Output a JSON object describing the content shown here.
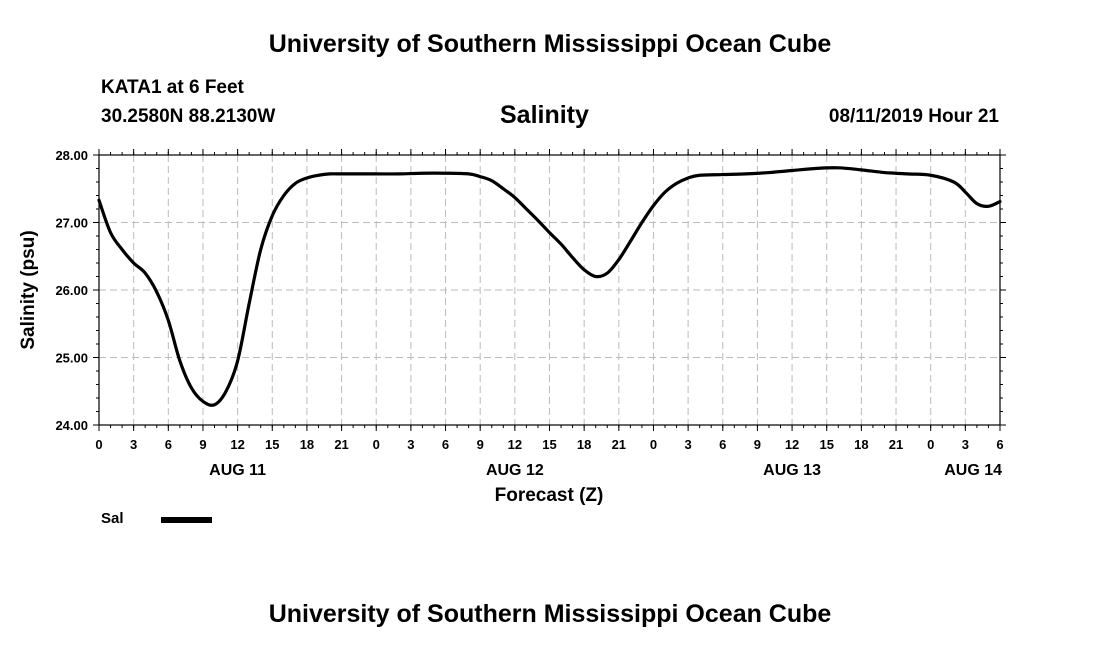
{
  "header": {
    "title": "University of Southern Mississippi Ocean Cube",
    "station": "KATA1 at 6 Feet",
    "coords": "30.2580N 88.2130W",
    "variable": "Salinity",
    "datetime": "08/11/2019 Hour 21"
  },
  "footer": {
    "title": "University of Southern Mississippi Ocean Cube"
  },
  "legend": {
    "label": "Sal"
  },
  "chart_data": {
    "type": "line",
    "title": "Salinity",
    "xlabel": "Forecast (Z)",
    "ylabel": "Salinity (psu)",
    "xlim": [
      0,
      78
    ],
    "ylim": [
      24.0,
      28.0
    ],
    "yticks": [
      24.0,
      25.0,
      26.0,
      27.0,
      28.0
    ],
    "ytick_labels": [
      "24.00",
      "25.00",
      "26.00",
      "27.00",
      "28.00"
    ],
    "xtick_labels": [
      "0",
      "3",
      "6",
      "9",
      "12",
      "15",
      "18",
      "21",
      "0",
      "3",
      "6",
      "9",
      "12",
      "15",
      "18",
      "21",
      "0",
      "3",
      "6",
      "9",
      "12",
      "15",
      "18",
      "21",
      "0",
      "3",
      "6"
    ],
    "date_labels": [
      {
        "text": "AUG 11",
        "hour": 12
      },
      {
        "text": "AUG 12",
        "hour": 36
      },
      {
        "text": "AUG 13",
        "hour": 60
      },
      {
        "text": "AUG 14",
        "hour": 78
      }
    ],
    "grid": true,
    "series": [
      {
        "name": "Sal",
        "color": "#000000",
        "x": [
          0,
          1,
          2,
          3,
          4,
          5,
          6,
          7,
          8,
          9,
          10,
          11,
          12,
          13,
          14,
          15,
          16,
          17,
          18,
          19,
          20,
          21,
          22,
          24,
          26,
          28,
          30,
          32,
          33,
          34,
          35,
          36,
          37,
          38,
          39,
          40,
          41,
          42,
          43,
          44,
          45,
          46,
          47,
          48,
          49,
          50,
          51,
          52,
          54,
          56,
          58,
          60,
          62,
          64,
          66,
          68,
          70,
          72,
          74,
          75,
          76,
          77,
          78
        ],
        "values": [
          27.33,
          26.85,
          26.6,
          26.4,
          26.25,
          25.97,
          25.55,
          24.95,
          24.55,
          24.35,
          24.3,
          24.5,
          24.95,
          25.8,
          26.6,
          27.1,
          27.4,
          27.58,
          27.66,
          27.7,
          27.72,
          27.72,
          27.72,
          27.72,
          27.72,
          27.73,
          27.73,
          27.72,
          27.68,
          27.62,
          27.5,
          27.37,
          27.2,
          27.03,
          26.85,
          26.68,
          26.48,
          26.3,
          26.2,
          26.25,
          26.45,
          26.72,
          27.0,
          27.25,
          27.45,
          27.58,
          27.66,
          27.7,
          27.71,
          27.72,
          27.74,
          27.77,
          27.8,
          27.81,
          27.78,
          27.74,
          27.72,
          27.7,
          27.6,
          27.45,
          27.28,
          27.24,
          27.31
        ]
      }
    ]
  }
}
